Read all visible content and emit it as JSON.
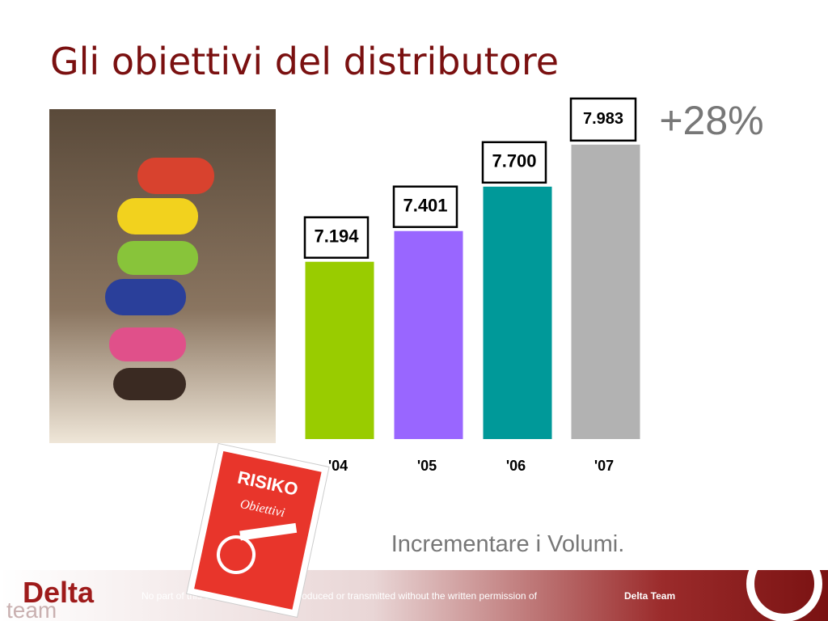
{
  "header": {
    "title": "Gli obiettivi del distributore"
  },
  "chart_data": {
    "type": "bar",
    "categories": [
      "'04",
      "'05",
      "'06",
      "'07"
    ],
    "values": [
      7194,
      7401,
      7700,
      7983
    ],
    "value_labels": [
      "7.194",
      "7.401",
      "7.700",
      "7.983"
    ],
    "colors": [
      "#99cc00",
      "#9966ff",
      "#009999",
      "#b2b2b2"
    ],
    "ylim": [
      6000,
      8200
    ],
    "annotation": "+28%"
  },
  "caption": "Incrementare i Volumi.",
  "card": {
    "title": "RISIKO",
    "subtitle": "Obiettivi"
  },
  "footer": {
    "notice": "No part of this document may be reproduced or transmitted without the written permission of",
    "owner": "Delta Team"
  },
  "logo": {
    "name": "Delta",
    "sub": "team"
  }
}
